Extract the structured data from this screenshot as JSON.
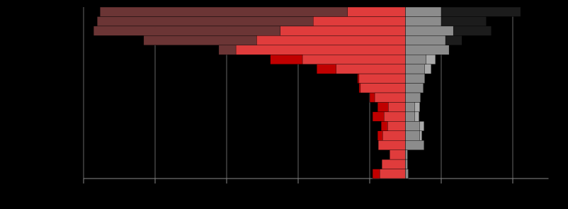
{
  "chart_data": {
    "type": "pyramid",
    "orientation": "horizontal",
    "xlim": [
      -450,
      200
    ],
    "xticks": [
      -450,
      -350,
      -250,
      -150,
      -50,
      50,
      150
    ],
    "grid": true,
    "background": "#000000",
    "series": [
      {
        "side": "left",
        "layer": "back",
        "colors": [
          "#6b3535",
          "#6b3535",
          "#6b3535",
          "#6b3535",
          "#6b3535",
          "#c00000",
          "#c00000",
          "#c00000",
          "#c00000",
          "#c00000",
          "#c00000",
          "#c00000",
          "#c00000",
          "#c00000",
          "#c00000",
          "#c00000",
          "#c00000",
          "#c00000"
        ],
        "values": [
          -427,
          -431,
          -436,
          -366,
          -261,
          -189,
          -124,
          -67,
          -65,
          -50,
          -39,
          -46,
          -34,
          -39,
          -38,
          -22,
          -33,
          -46
        ]
      },
      {
        "side": "left",
        "layer": "front",
        "color": "#e03c3c",
        "values": [
          -81,
          -129,
          -175,
          -208,
          -237,
          -144,
          -97,
          -65,
          -63,
          -43,
          -24,
          -30,
          -25,
          -32,
          -38,
          -22,
          -33,
          -36
        ]
      },
      {
        "side": "right",
        "layer": "back",
        "colors": [
          "#1c1c1c",
          "#1c1c1c",
          "#1c1c1c",
          "#1c1c1c",
          "#1c1c1c",
          "#aaaaaa",
          "#aaaaaa",
          "#aaaaaa",
          "#aaaaaa",
          "#aaaaaa",
          "#aaaaaa",
          "#aaaaaa",
          "#aaaaaa",
          "#aaaaaa",
          "#aaaaaa",
          "#aaaaaa",
          "#aaaaaa",
          "#aaaaaa"
        ],
        "values": [
          161,
          113,
          120,
          79,
          61,
          42,
          36,
          27,
          25,
          21,
          20,
          19,
          26,
          23,
          26,
          3,
          3,
          4
        ]
      },
      {
        "side": "right",
        "layer": "front",
        "color": "#8c8c8c",
        "values": [
          50,
          50,
          67,
          56,
          61,
          29,
          27,
          27,
          25,
          21,
          13,
          13,
          20,
          20,
          26,
          3,
          3,
          4
        ]
      }
    ]
  }
}
